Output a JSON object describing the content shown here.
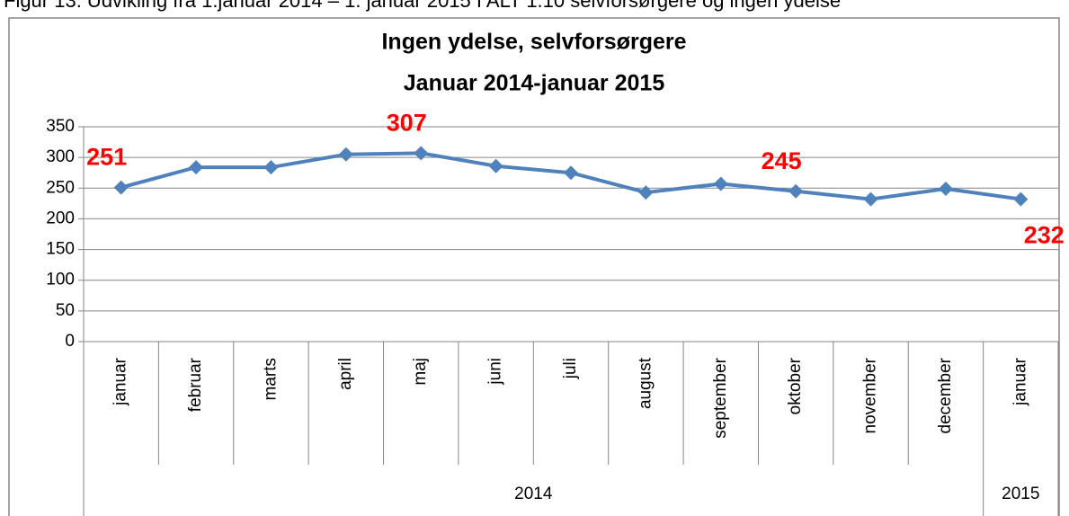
{
  "chart_data": {
    "type": "line",
    "caption": "Figur 13: Udvikling fra 1.januar 2014 – 1. januar 2015 I ALT 1.10 selvforsørgere og ingen ydelse",
    "title": "Ingen ydelse, selvforsørgere",
    "subtitle": "Januar 2014-januar 2015",
    "categories": [
      "januar",
      "februar",
      "marts",
      "april",
      "maj",
      "juni",
      "juli",
      "august",
      "september",
      "oktober",
      "november",
      "december",
      "januar"
    ],
    "category_groups": [
      {
        "label": "2014",
        "span": 12
      },
      {
        "label": "2015",
        "span": 1
      }
    ],
    "series": [
      {
        "color": "#4f81bd",
        "values": [
          251,
          284,
          284,
          305,
          307,
          286,
          275,
          243,
          257,
          245,
          232,
          249,
          232
        ],
        "value_labels": [
          "251",
          null,
          null,
          null,
          "307",
          null,
          null,
          null,
          null,
          "245",
          null,
          null,
          "232"
        ]
      }
    ],
    "value_label_color": "#ff0000",
    "ylim": [
      0,
      350
    ],
    "yticks": [
      0,
      50,
      100,
      150,
      200,
      250,
      300,
      350
    ],
    "grid": true
  }
}
